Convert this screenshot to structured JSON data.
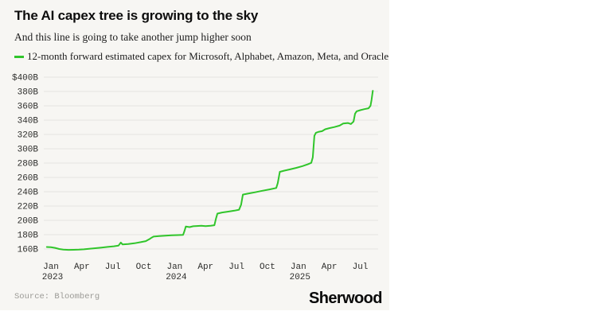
{
  "footer": {
    "source": "Source: Bloomberg",
    "brand": "Sherwood"
  },
  "chart_data": {
    "type": "line",
    "title": "The AI capex tree is growing to the sky",
    "subtitle": "And this line is going to take another jump higher soon",
    "legend_position": "top-left",
    "grid": "horizontal",
    "x_axis": {
      "unit": "months since Jan 2023",
      "ticks": [
        {
          "m": 0,
          "label": "Jan",
          "year": "2023"
        },
        {
          "m": 3,
          "label": "Apr"
        },
        {
          "m": 6,
          "label": "Jul"
        },
        {
          "m": 9,
          "label": "Oct"
        },
        {
          "m": 12,
          "label": "Jan",
          "year": "2024"
        },
        {
          "m": 15,
          "label": "Apr"
        },
        {
          "m": 18,
          "label": "Jul"
        },
        {
          "m": 21,
          "label": "Oct"
        },
        {
          "m": 24,
          "label": "Jan",
          "year": "2025"
        },
        {
          "m": 27,
          "label": "Apr"
        },
        {
          "m": 30,
          "label": "Jul"
        }
      ]
    },
    "y_axis": {
      "unit": "$ billions",
      "range": [
        160,
        400
      ],
      "tick_step": 20,
      "ticks": [
        {
          "value": 400,
          "label": "$400B"
        },
        {
          "value": 380,
          "label": "380B"
        },
        {
          "value": 360,
          "label": "360B"
        },
        {
          "value": 340,
          "label": "340B"
        },
        {
          "value": 320,
          "label": "320B"
        },
        {
          "value": 300,
          "label": "300B"
        },
        {
          "value": 280,
          "label": "280B"
        },
        {
          "value": 260,
          "label": "260B"
        },
        {
          "value": 240,
          "label": "240B"
        },
        {
          "value": 220,
          "label": "220B"
        },
        {
          "value": 200,
          "label": "200B"
        },
        {
          "value": 180,
          "label": "180B"
        },
        {
          "value": 160,
          "label": "160B"
        }
      ]
    },
    "series": [
      {
        "name": "12-month forward estimated capex for Microsoft, Alphabet, Amazon, Meta, and Oracle",
        "color": "#30c52b",
        "points": [
          [
            -0.4,
            162.8
          ],
          [
            0,
            162.5
          ],
          [
            0.4,
            161.6
          ],
          [
            0.8,
            160.0
          ],
          [
            1.2,
            159.2
          ],
          [
            1.7,
            158.8
          ],
          [
            2.2,
            158.9
          ],
          [
            2.7,
            159.1
          ],
          [
            3.2,
            159.6
          ],
          [
            3.7,
            160.3
          ],
          [
            4.3,
            161.1
          ],
          [
            4.9,
            162.0
          ],
          [
            5.5,
            162.9
          ],
          [
            6.1,
            163.8
          ],
          [
            6.55,
            164.7
          ],
          [
            6.78,
            169.0
          ],
          [
            6.95,
            166.3
          ],
          [
            7.5,
            167.0
          ],
          [
            8.1,
            168.0
          ],
          [
            8.7,
            169.5
          ],
          [
            9.2,
            171.0
          ],
          [
            9.6,
            174.2
          ],
          [
            9.78,
            176.0
          ],
          [
            9.95,
            177.3
          ],
          [
            10.5,
            178.0
          ],
          [
            11.1,
            178.7
          ],
          [
            11.7,
            179.1
          ],
          [
            12.3,
            179.4
          ],
          [
            12.82,
            179.8
          ],
          [
            12.95,
            185.0
          ],
          [
            13.08,
            191.3
          ],
          [
            13.45,
            190.6
          ],
          [
            13.8,
            191.8
          ],
          [
            14.15,
            192.1
          ],
          [
            14.6,
            192.4
          ],
          [
            15.0,
            191.9
          ],
          [
            15.5,
            192.5
          ],
          [
            15.85,
            193.2
          ],
          [
            16.0,
            202.0
          ],
          [
            16.15,
            209.4
          ],
          [
            16.6,
            211.0
          ],
          [
            17.2,
            212.2
          ],
          [
            17.8,
            213.6
          ],
          [
            18.25,
            214.9
          ],
          [
            18.45,
            222.0
          ],
          [
            18.62,
            236.0
          ],
          [
            19.1,
            237.3
          ],
          [
            19.8,
            239.2
          ],
          [
            20.5,
            241.3
          ],
          [
            21.2,
            243.2
          ],
          [
            21.85,
            245.2
          ],
          [
            22.0,
            252.0
          ],
          [
            22.2,
            267.8
          ],
          [
            22.6,
            269.3
          ],
          [
            23.2,
            271.2
          ],
          [
            23.8,
            273.3
          ],
          [
            24.4,
            275.8
          ],
          [
            24.9,
            278.2
          ],
          [
            25.25,
            280.3
          ],
          [
            25.4,
            288.0
          ],
          [
            25.55,
            318.0
          ],
          [
            25.7,
            322.3
          ],
          [
            26.0,
            323.8
          ],
          [
            26.3,
            324.6
          ],
          [
            26.6,
            327.2
          ],
          [
            27.0,
            328.8
          ],
          [
            27.5,
            330.3
          ],
          [
            28.0,
            332.3
          ],
          [
            28.35,
            335.2
          ],
          [
            28.8,
            336.0
          ],
          [
            29.1,
            334.6
          ],
          [
            29.35,
            338.0
          ],
          [
            29.5,
            349.0
          ],
          [
            29.65,
            352.3
          ],
          [
            30.0,
            353.9
          ],
          [
            30.4,
            355.3
          ],
          [
            30.8,
            356.6
          ],
          [
            31.0,
            360.0
          ],
          [
            31.1,
            368.0
          ],
          [
            31.22,
            381.0
          ]
        ]
      }
    ]
  }
}
